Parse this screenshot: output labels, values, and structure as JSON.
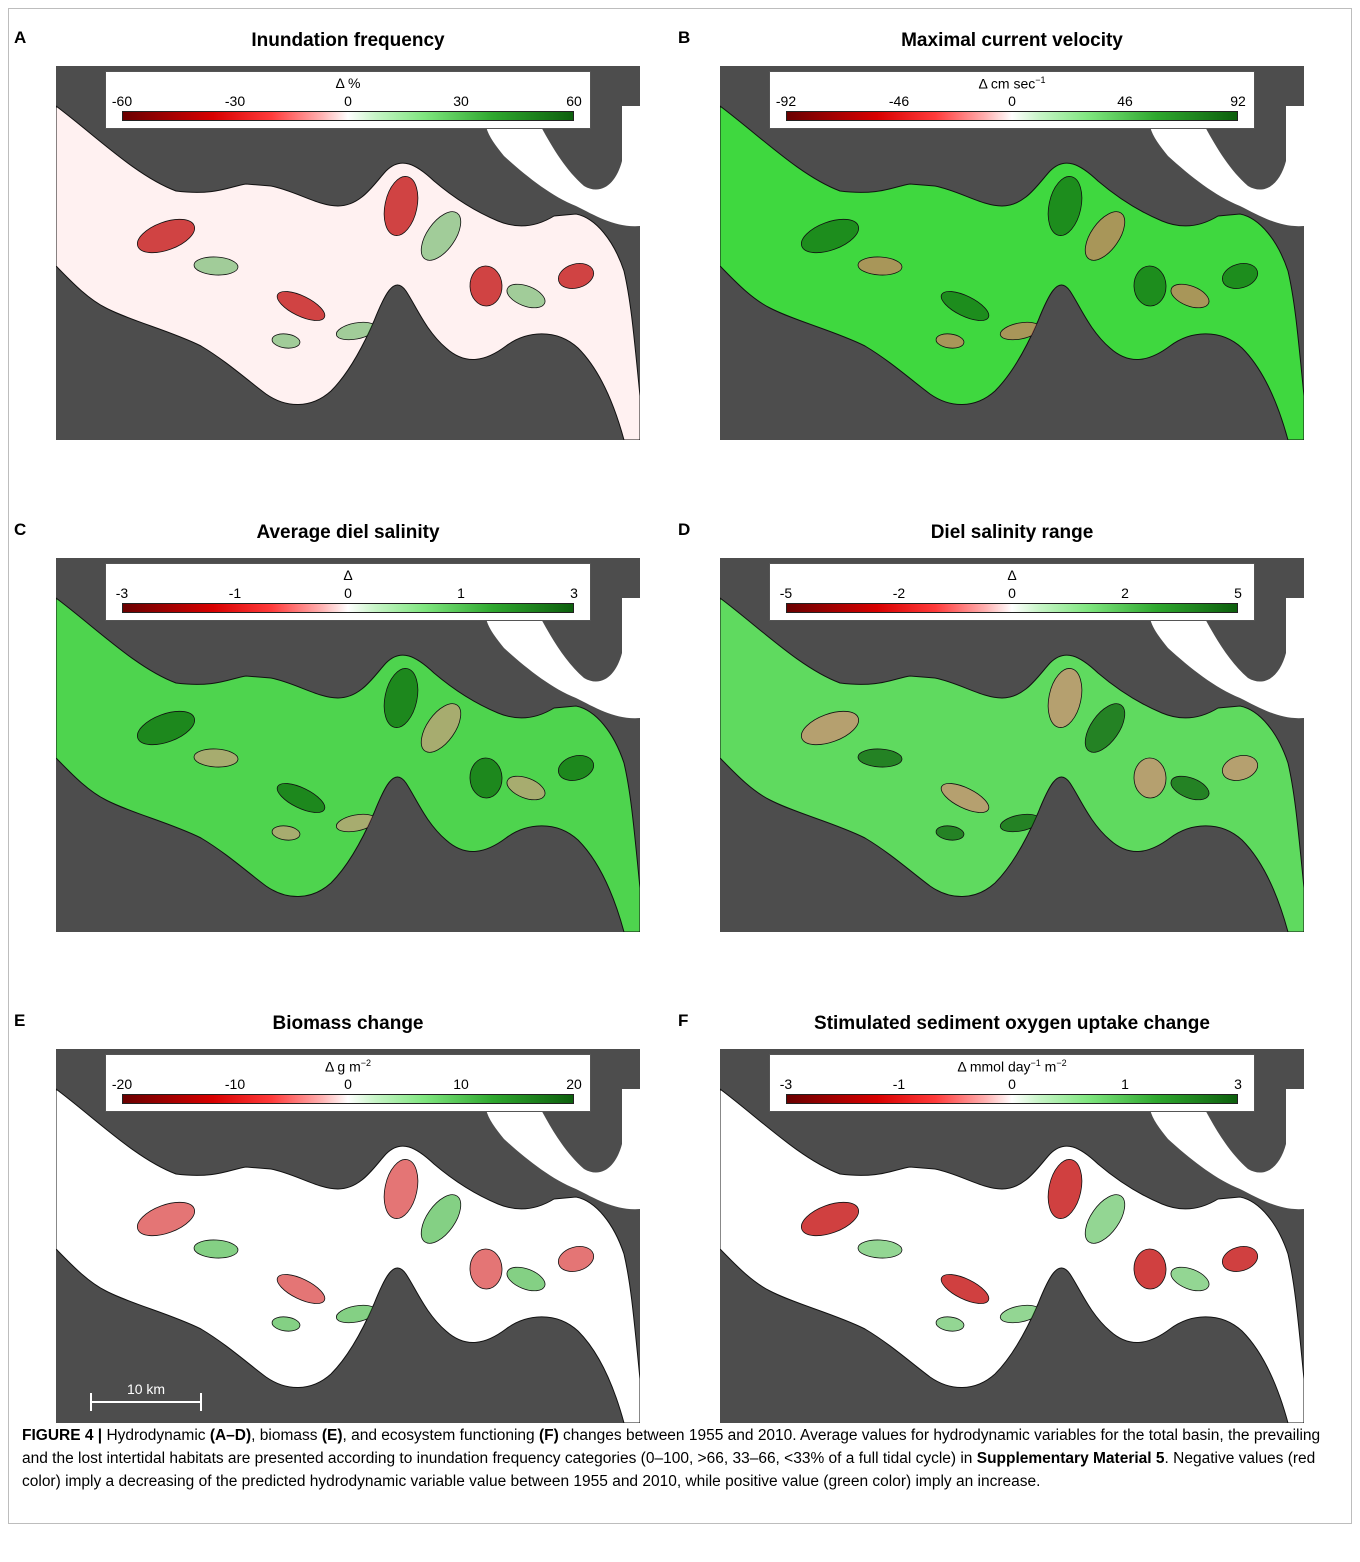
{
  "panels": [
    {
      "letter": "A",
      "title": "Inundation frequency",
      "unit_html": "Δ %",
      "ticks": [
        "-60",
        "-30",
        "0",
        "30",
        "60"
      ],
      "fill": "a"
    },
    {
      "letter": "B",
      "title": "Maximal current velocity",
      "unit_html": "Δ cm sec<sup>−1</sup>",
      "ticks": [
        "-92",
        "-46",
        "0",
        "46",
        "92"
      ],
      "fill": "b"
    },
    {
      "letter": "C",
      "title": "Average diel salinity",
      "unit_html": "Δ",
      "ticks": [
        "-3",
        "-1",
        "0",
        "1",
        "3"
      ],
      "fill": "c"
    },
    {
      "letter": "D",
      "title": "Diel salinity range",
      "unit_html": "Δ",
      "ticks": [
        "-5",
        "-2",
        "0",
        "2",
        "5"
      ],
      "fill": "d"
    },
    {
      "letter": "E",
      "title": "Biomass change",
      "unit_html": "Δ g m<sup>−2</sup>",
      "ticks": [
        "-20",
        "-10",
        "0",
        "10",
        "20"
      ],
      "fill": "e"
    },
    {
      "letter": "F",
      "title": "Stimulated sediment oxygen uptake change",
      "unit_html": "Δ mmol day<sup>−1</sup> m<sup>−2</sup>",
      "ticks": [
        "-3",
        "-1",
        "0",
        "1",
        "3"
      ],
      "fill": "f"
    }
  ],
  "scalebar": {
    "label": "10 km"
  },
  "caption": {
    "label": "FIGURE 4 |",
    "t1": " Hydrodynamic ",
    "b1": "(A–D)",
    "t2": ", biomass ",
    "b2": "(E)",
    "t3": ", and ecosystem functioning ",
    "b3": "(F)",
    "t4": " changes between 1955 and 2010. Average values for hydrodynamic variables for the total basin, the prevailing and the lost intertidal habitats are presented according to inundation frequency categories (0–100, >66, 33–66, <33% of a full tidal cycle) in ",
    "b4": "Supplementary Material 5",
    "t5": ". Negative values (red color) imply a decreasing of the predicted hydrodynamic variable value between 1955 and 2010, while positive value (green color) imply an increase."
  },
  "colors": {
    "land": "#4d4d4d",
    "decrease": "#d80000",
    "increase": "#1f8f1f",
    "neutral": "#ffffff"
  }
}
